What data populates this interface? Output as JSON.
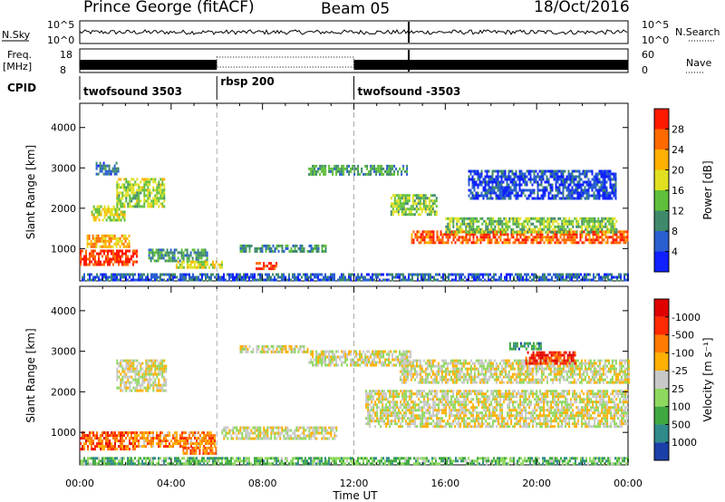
{
  "header": {
    "title": "Prince George (fitACF)",
    "beam": "Beam 05",
    "date": "18/Oct/2016"
  },
  "strips": {
    "nsky_label": "N.Sky",
    "nsearch_label": "N.Search",
    "freq_label_line1": "Freq.",
    "freq_label_line2": "[MHz]",
    "nave_label": "Nave",
    "cpid_label": "CPID",
    "noise_ticks": [
      "10^5",
      "10^0"
    ],
    "freq_ticks_left": [
      "18",
      "8"
    ],
    "freq_ticks_right": [
      "60",
      "0"
    ],
    "cpid_segments": [
      {
        "label": "twofsound 3503",
        "start_hour": 0,
        "end_hour": 6
      },
      {
        "label": "rbsp 200",
        "start_hour": 6,
        "end_hour": 12
      },
      {
        "label": "twofsound -3503",
        "start_hour": 12,
        "end_hour": 24
      }
    ]
  },
  "chart_data": [
    {
      "type": "heatmap",
      "name": "power",
      "ylabel": "Slant Range [km]",
      "y_ticks": [
        1000,
        2000,
        3000,
        4000
      ],
      "ylim": [
        200,
        4600
      ],
      "colorbar_label": "Power [dB]",
      "colorbar_ticks": [
        "4",
        "8",
        "12",
        "16",
        "20",
        "24",
        "28"
      ],
      "colorbar_colors": [
        "#1020ff",
        "#2a5fd0",
        "#3f8a6a",
        "#5fbf3a",
        "#e0e020",
        "#ffb000",
        "#ff6a00",
        "#ff1a00"
      ],
      "bands": [
        {
          "x0": 0.0,
          "x1": 2.5,
          "y": 800,
          "h": 350,
          "level": 0.9
        },
        {
          "x0": 0.3,
          "x1": 2.2,
          "y": 1200,
          "h": 300,
          "level": 0.7
        },
        {
          "x0": 0.5,
          "x1": 2.0,
          "y": 1900,
          "h": 350,
          "level": 0.55
        },
        {
          "x0": 1.6,
          "x1": 3.7,
          "y": 2400,
          "h": 700,
          "level": 0.5
        },
        {
          "x0": 0.7,
          "x1": 1.7,
          "y": 3000,
          "h": 300,
          "level": 0.25
        },
        {
          "x0": 3.0,
          "x1": 5.6,
          "y": 850,
          "h": 300,
          "level": 0.35
        },
        {
          "x0": 4.2,
          "x1": 6.2,
          "y": 600,
          "h": 200,
          "level": 0.55
        },
        {
          "x0": 7.0,
          "x1": 10.8,
          "y": 1000,
          "h": 200,
          "level": 0.3
        },
        {
          "x0": 7.7,
          "x1": 8.6,
          "y": 580,
          "h": 180,
          "level": 0.95
        },
        {
          "x0": 10.0,
          "x1": 14.3,
          "y": 2950,
          "h": 250,
          "level": 0.35
        },
        {
          "x0": 13.6,
          "x1": 15.6,
          "y": 2100,
          "h": 500,
          "level": 0.45
        },
        {
          "x0": 14.5,
          "x1": 24.0,
          "y": 1300,
          "h": 300,
          "level": 0.85
        },
        {
          "x0": 16.0,
          "x1": 23.5,
          "y": 1600,
          "h": 350,
          "level": 0.45
        },
        {
          "x0": 17.0,
          "x1": 23.5,
          "y": 2600,
          "h": 700,
          "level": 0.15
        },
        {
          "x0": 0.0,
          "x1": 24.0,
          "y": 300,
          "h": 180,
          "level": 0.2
        }
      ]
    },
    {
      "type": "heatmap",
      "name": "velocity",
      "ylabel": "Slant Range [km]",
      "y_ticks": [
        1000,
        2000,
        3000,
        4000
      ],
      "ylim": [
        200,
        4600
      ],
      "colorbar_label": "Velocity [m s⁻¹]",
      "colorbar_ticks": [
        "1000",
        "500",
        "100",
        "25",
        "-25",
        "-100",
        "-500",
        "-1000"
      ],
      "colorbar_colors": [
        "#1a3fa8",
        "#2f8a8a",
        "#3fa83f",
        "#8fd85f",
        "#c8c8c8",
        "#ffb000",
        "#ff7a00",
        "#ff2a00",
        "#e00000"
      ],
      "bands": [
        {
          "x0": 0.0,
          "x1": 2.4,
          "y": 800,
          "h": 450,
          "level": 0.78
        },
        {
          "x0": 2.3,
          "x1": 5.9,
          "y": 850,
          "h": 350,
          "level": 0.68
        },
        {
          "x0": 4.5,
          "x1": 6.0,
          "y": 550,
          "h": 200,
          "level": 0.72
        },
        {
          "x0": 1.6,
          "x1": 3.8,
          "y": 2400,
          "h": 800,
          "level": 0.5
        },
        {
          "x0": 6.2,
          "x1": 11.2,
          "y": 1000,
          "h": 300,
          "level": 0.5
        },
        {
          "x0": 7.0,
          "x1": 10.0,
          "y": 3050,
          "h": 200,
          "level": 0.5
        },
        {
          "x0": 10.0,
          "x1": 14.5,
          "y": 2850,
          "h": 350,
          "level": 0.5
        },
        {
          "x0": 12.5,
          "x1": 24.0,
          "y": 1600,
          "h": 900,
          "level": 0.5
        },
        {
          "x0": 14.0,
          "x1": 24.0,
          "y": 2500,
          "h": 600,
          "level": 0.5
        },
        {
          "x0": 19.5,
          "x1": 21.7,
          "y": 2850,
          "h": 300,
          "level": 0.85
        },
        {
          "x0": 18.8,
          "x1": 20.2,
          "y": 3150,
          "h": 150,
          "level": 0.2
        },
        {
          "x0": 0.0,
          "x1": 24.0,
          "y": 320,
          "h": 150,
          "level": 0.32
        }
      ]
    }
  ],
  "x_axis": {
    "label": "Time UT",
    "ticks": [
      "00:00",
      "04:00",
      "08:00",
      "12:00",
      "16:00",
      "20:00",
      "00:00"
    ]
  }
}
